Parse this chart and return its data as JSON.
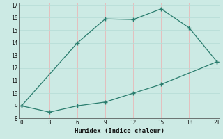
{
  "xlabel": "Humidex (Indice chaleur)",
  "line1_x": [
    0,
    6,
    9,
    12,
    15,
    18,
    21
  ],
  "line1_y": [
    9,
    14,
    15.9,
    15.85,
    16.7,
    15.2,
    12.5
  ],
  "line2_x": [
    0,
    3,
    6,
    9,
    12,
    15,
    21
  ],
  "line2_y": [
    9,
    8.5,
    9.0,
    9.3,
    10.0,
    10.7,
    12.5
  ],
  "line_color": "#2a7d6e",
  "bg_color": "#cceae4",
  "grid_major_color": "#f0c8c8",
  "grid_minor_color": "#d4eeea",
  "xlim": [
    -0.3,
    21.3
  ],
  "ylim": [
    8,
    17.2
  ],
  "xticks": [
    0,
    3,
    6,
    9,
    12,
    15,
    18,
    21
  ],
  "yticks": [
    8,
    9,
    10,
    11,
    12,
    13,
    14,
    15,
    16,
    17
  ],
  "marker": "+",
  "markersize": 5,
  "linewidth": 0.9,
  "linestyle": "-"
}
